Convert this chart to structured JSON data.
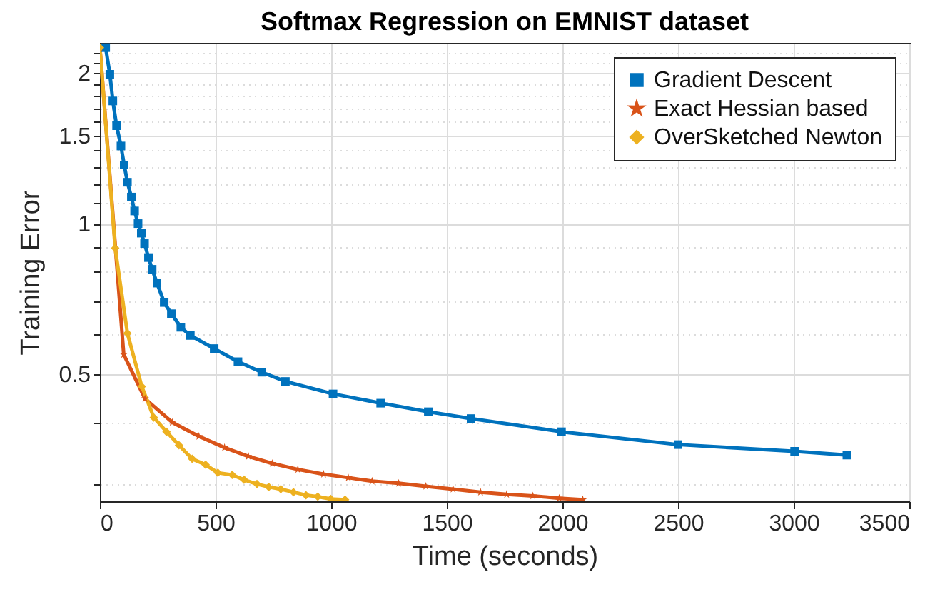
{
  "chart_data": {
    "type": "line",
    "title": "Softmax Regression on EMNIST dataset",
    "xlabel": "Time (seconds)",
    "ylabel": "Training Error",
    "log": "y",
    "grid": true,
    "legend": "top right",
    "xlim": [
      0,
      3500
    ],
    "xticks": [
      0,
      500,
      1000,
      1500,
      2000,
      2500,
      3000,
      3500
    ],
    "ylim": [
      0.278,
      2.3
    ],
    "yticks": [
      {
        "value": 0.3,
        "label": null
      },
      {
        "value": 0.4,
        "label": null
      },
      0.5,
      {
        "value": 0.6,
        "label": null
      },
      {
        "value": 0.7,
        "label": null
      },
      {
        "value": 0.8,
        "label": null
      },
      {
        "value": 0.9,
        "label": null
      },
      1,
      {
        "value": 1.1,
        "label": null
      },
      {
        "value": 1.2,
        "label": null
      },
      {
        "value": 1.3,
        "label": null
      },
      {
        "value": 1.4,
        "label": null
      },
      1.5,
      {
        "value": 1.6,
        "label": null
      },
      {
        "value": 1.7,
        "label": null
      },
      {
        "value": 1.8,
        "label": null
      },
      {
        "value": 1.9,
        "label": null
      },
      2,
      {
        "value": 2.1,
        "label": null
      },
      {
        "value": 2.2,
        "label": null
      }
    ],
    "series": [
      {
        "name": "Gradient Descent",
        "color": "#0072bd",
        "marker": "square",
        "x": [
          25,
          43,
          56,
          72,
          91,
          105,
          119,
          136,
          150,
          165,
          179,
          193,
          210,
          226,
          247,
          278,
          309,
          350,
          391,
          494,
          597,
          700,
          802,
          1008,
          1214,
          1420,
          1605,
          1996,
          2500,
          3004,
          3230
        ],
        "values": [
          2.25,
          1.99,
          1.76,
          1.57,
          1.43,
          1.31,
          1.21,
          1.13,
          1.06,
          1.0,
          0.957,
          0.912,
          0.855,
          0.81,
          0.76,
          0.695,
          0.66,
          0.62,
          0.597,
          0.562,
          0.529,
          0.504,
          0.483,
          0.456,
          0.437,
          0.42,
          0.407,
          0.383,
          0.361,
          0.35,
          0.344
        ]
      },
      {
        "name": "Exact Hessian based",
        "color": "#d95319",
        "marker": "star",
        "x": [
          0,
          103,
          195,
          313,
          428,
          539,
          642,
          745,
          856,
          967,
          1074,
          1177,
          1292,
          1409,
          1527,
          1646,
          1759,
          1872,
          1986,
          2088
        ],
        "values": [
          2.25,
          0.547,
          0.446,
          0.4,
          0.375,
          0.356,
          0.342,
          0.331,
          0.322,
          0.315,
          0.31,
          0.305,
          0.302,
          0.298,
          0.294,
          0.29,
          0.287,
          0.285,
          0.282,
          0.28
        ]
      },
      {
        "name": "OverSketched Newton",
        "color": "#edb120",
        "marker": "diamond",
        "x": [
          0,
          66,
          119,
          181,
          233,
          288,
          342,
          399,
          457,
          510,
          572,
          623,
          679,
          730,
          782,
          837,
          891,
          942,
          998,
          1060
        ],
        "values": [
          2.25,
          0.893,
          0.603,
          0.472,
          0.409,
          0.383,
          0.36,
          0.338,
          0.329,
          0.317,
          0.314,
          0.307,
          0.301,
          0.297,
          0.294,
          0.29,
          0.286,
          0.284,
          0.281,
          0.28
        ]
      }
    ]
  }
}
